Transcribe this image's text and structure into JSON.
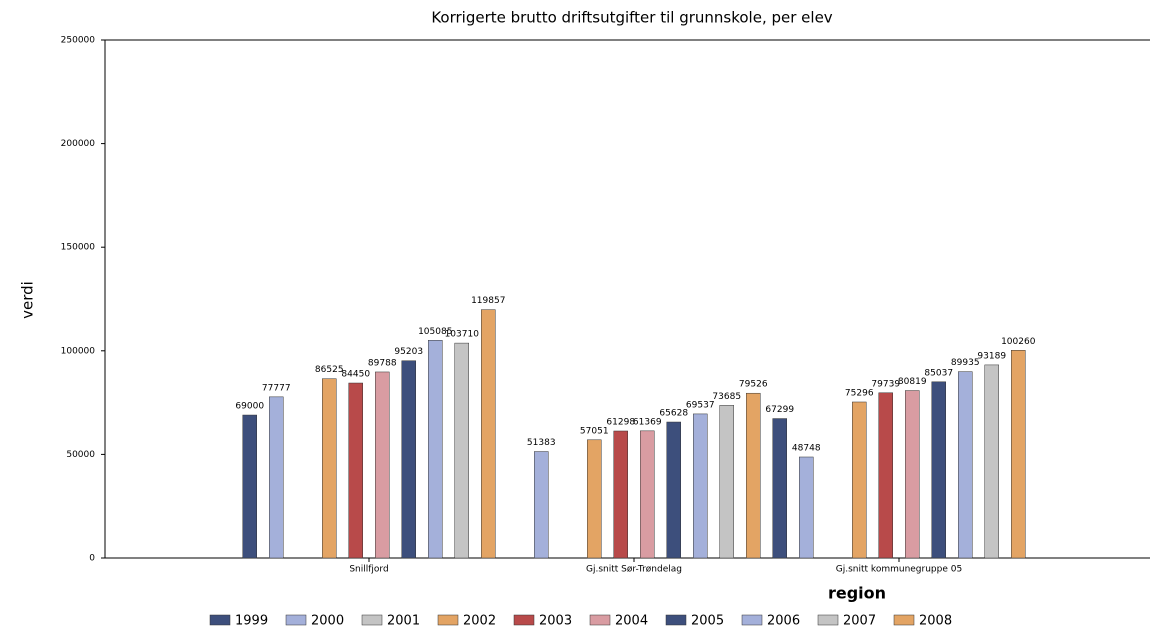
{
  "chart_data": {
    "type": "bar",
    "title": "Korrigerte brutto driftsutgifter til grunnskole, per elev",
    "ylabel": "verdi",
    "xlabel": "region",
    "categories": [
      "Snillfjord",
      "Gj.snitt Sør-Trøndelag",
      "Gj.snitt kommunegruppe 05"
    ],
    "series": [
      {
        "name": "1999",
        "color": "#3d4f7c",
        "values": [
          69000,
          null,
          67299
        ]
      },
      {
        "name": "2000",
        "color": "#a4b0da",
        "values": [
          77777,
          51383,
          48748
        ]
      },
      {
        "name": "2001",
        "color": "#c4c4c4",
        "values": [
          null,
          null,
          null
        ]
      },
      {
        "name": "2002",
        "color": "#e3a464",
        "values": [
          86525,
          57051,
          75296
        ]
      },
      {
        "name": "2003",
        "color": "#b84a4a",
        "values": [
          84450,
          61298,
          79739
        ]
      },
      {
        "name": "2004",
        "color": "#d99ca2",
        "values": [
          89788,
          61369,
          80819
        ]
      },
      {
        "name": "2005",
        "color": "#3d4f7c",
        "values": [
          95203,
          65628,
          85037
        ]
      },
      {
        "name": "2006",
        "color": "#a4b0da",
        "values": [
          105085,
          69537,
          89935
        ]
      },
      {
        "name": "2007",
        "color": "#c4c4c4",
        "values": [
          103710,
          73685,
          93189
        ]
      },
      {
        "name": "2008",
        "color": "#e3a464",
        "values": [
          119857,
          79526,
          100260
        ]
      }
    ],
    "ylim": [
      0,
      250000
    ],
    "yticks": [
      0,
      50000,
      100000,
      150000,
      200000,
      250000
    ]
  }
}
